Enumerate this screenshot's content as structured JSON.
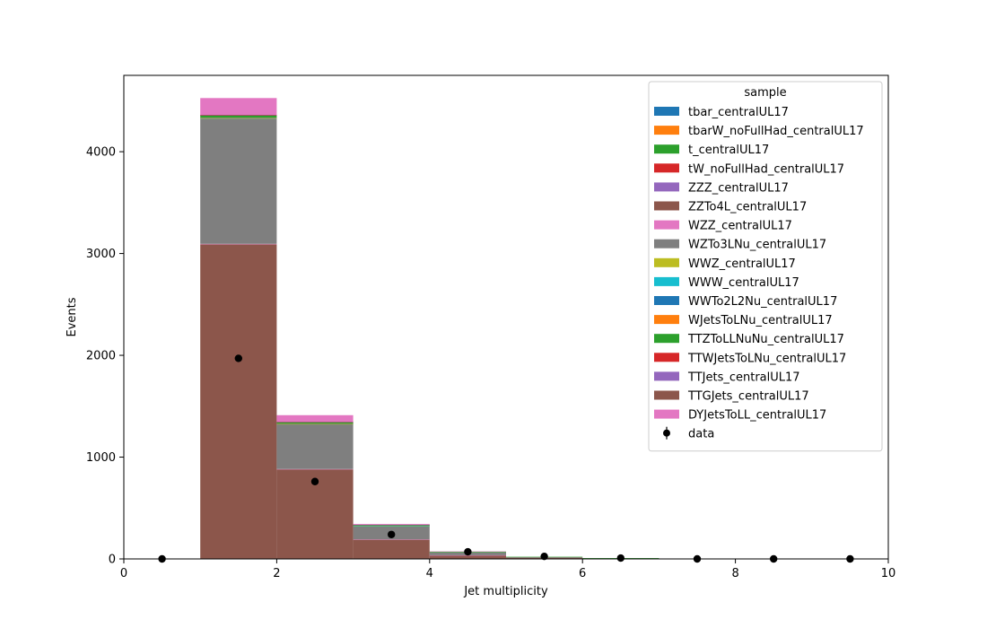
{
  "chart_data": {
    "type": "bar",
    "stacked": true,
    "histogram": true,
    "xlabel": "Jet multiplicity",
    "ylabel": "Events",
    "xlim": [
      0,
      10
    ],
    "ylim": [
      0,
      4750
    ],
    "xticks": [
      "0",
      "2",
      "4",
      "6",
      "8",
      "10"
    ],
    "yticks": [
      "0",
      "1000",
      "2000",
      "3000",
      "4000"
    ],
    "grid": false,
    "legend": {
      "title": "sample",
      "position": "top-right"
    },
    "bin_edges": [
      0,
      1,
      2,
      3,
      4,
      5,
      6,
      7,
      8,
      9,
      10
    ],
    "series": [
      {
        "name": "tbar_centralUL17",
        "color": "#1f77b4",
        "values": [
          0,
          0,
          0,
          0,
          0,
          0,
          0,
          0,
          0,
          0
        ]
      },
      {
        "name": "tbarW_noFullHad_centralUL17",
        "color": "#ff7f0e",
        "values": [
          0,
          0,
          0,
          0,
          0,
          0,
          0,
          0,
          0,
          0
        ]
      },
      {
        "name": "t_centralUL17",
        "color": "#2ca02c",
        "values": [
          0,
          0,
          0,
          0,
          0,
          0,
          0,
          0,
          0,
          0
        ]
      },
      {
        "name": "tW_noFullHad_centralUL17",
        "color": "#d62728",
        "values": [
          0,
          0,
          0,
          0,
          0,
          0,
          0,
          0,
          0,
          0
        ]
      },
      {
        "name": "ZZZ_centralUL17",
        "color": "#9467bd",
        "values": [
          0,
          0,
          0,
          0,
          0,
          0,
          0,
          0,
          0,
          0
        ]
      },
      {
        "name": "ZZTo4L_centralUL17",
        "color": "#8c564b",
        "values": [
          0,
          3090,
          880,
          190,
          35,
          12,
          5,
          0,
          0,
          0
        ]
      },
      {
        "name": "WZZ_centralUL17",
        "color": "#e377c2",
        "values": [
          0,
          5,
          3,
          2,
          1,
          0,
          0,
          0,
          0,
          0
        ]
      },
      {
        "name": "WZTo3LNu_centralUL17",
        "color": "#7f7f7f",
        "values": [
          0,
          1230,
          440,
          130,
          28,
          6,
          2,
          0,
          0,
          0
        ]
      },
      {
        "name": "WWZ_centralUL17",
        "color": "#bcbd22",
        "values": [
          0,
          3,
          2,
          1,
          0,
          0,
          0,
          0,
          0,
          0
        ]
      },
      {
        "name": "WWW_centralUL17",
        "color": "#17becf",
        "values": [
          0,
          2,
          1,
          1,
          0,
          0,
          0,
          0,
          0,
          0
        ]
      },
      {
        "name": "WWTo2L2Nu_centralUL17",
        "color": "#1f77b4",
        "values": [
          0,
          3,
          1,
          0,
          0,
          0,
          0,
          0,
          0,
          0
        ]
      },
      {
        "name": "WJetsToLNu_centralUL17",
        "color": "#ff7f0e",
        "values": [
          0,
          2,
          1,
          0,
          0,
          0,
          0,
          0,
          0,
          0
        ]
      },
      {
        "name": "TTZToLLNuNu_centralUL17",
        "color": "#2ca02c",
        "values": [
          0,
          20,
          15,
          10,
          8,
          3,
          1,
          0,
          0,
          0
        ]
      },
      {
        "name": "TTWJetsToLNu_centralUL17",
        "color": "#d62728",
        "values": [
          0,
          3,
          2,
          1,
          0,
          0,
          0,
          0,
          0,
          0
        ]
      },
      {
        "name": "TTJets_centralUL17",
        "color": "#9467bd",
        "values": [
          0,
          2,
          1,
          1,
          0,
          0,
          0,
          0,
          0,
          0
        ]
      },
      {
        "name": "TTGJets_centralUL17",
        "color": "#8c564b",
        "values": [
          0,
          2,
          1,
          0,
          0,
          0,
          0,
          0,
          0,
          0
        ]
      },
      {
        "name": "DYJetsToLL_centralUL17",
        "color": "#e377c2",
        "values": [
          0,
          165,
          65,
          8,
          2,
          0,
          0,
          0,
          0,
          0
        ]
      }
    ],
    "data": {
      "name": "data",
      "color": "#000000",
      "x": [
        0.5,
        1.5,
        2.5,
        3.5,
        4.5,
        5.5,
        6.5,
        7.5,
        8.5,
        9.5
      ],
      "y": [
        0,
        1970,
        760,
        240,
        70,
        25,
        8,
        0,
        0,
        0
      ]
    }
  }
}
